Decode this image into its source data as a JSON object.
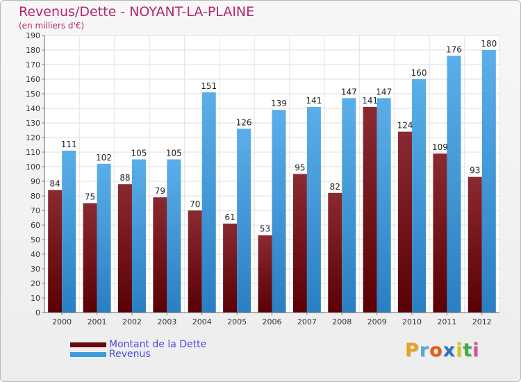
{
  "chart_data": {
    "type": "bar",
    "title": "Revenus/Dette - NOYANT-LA-PLAINE",
    "subtitle": "(en milliers d'€)",
    "categories": [
      "2000",
      "2001",
      "2002",
      "2003",
      "2004",
      "2005",
      "2006",
      "2007",
      "2008",
      "2009",
      "2010",
      "2011",
      "2012"
    ],
    "series": [
      {
        "name": "Montant de la Dette",
        "color": "#7a0d12",
        "values": [
          84,
          75,
          88,
          79,
          70,
          61,
          53,
          95,
          82,
          141,
          124,
          109,
          93
        ]
      },
      {
        "name": "Revenus",
        "color": "#3d9be0",
        "values": [
          111,
          102,
          105,
          105,
          151,
          126,
          139,
          141,
          147,
          147,
          160,
          176,
          180
        ]
      }
    ],
    "ylim": [
      0,
      190
    ],
    "ytick_step": 10,
    "grid": true,
    "legend": "bottom-left",
    "xlabel": "",
    "ylabel": ""
  },
  "logo": {
    "letters": [
      "P",
      "r",
      "o",
      "x",
      "i",
      "t",
      "i"
    ],
    "colors": [
      "#e8a21c",
      "#5aa7d8",
      "#e85b12",
      "#2d73c4",
      "#d8c21c",
      "#3fae3f",
      "#d84d9b"
    ]
  }
}
